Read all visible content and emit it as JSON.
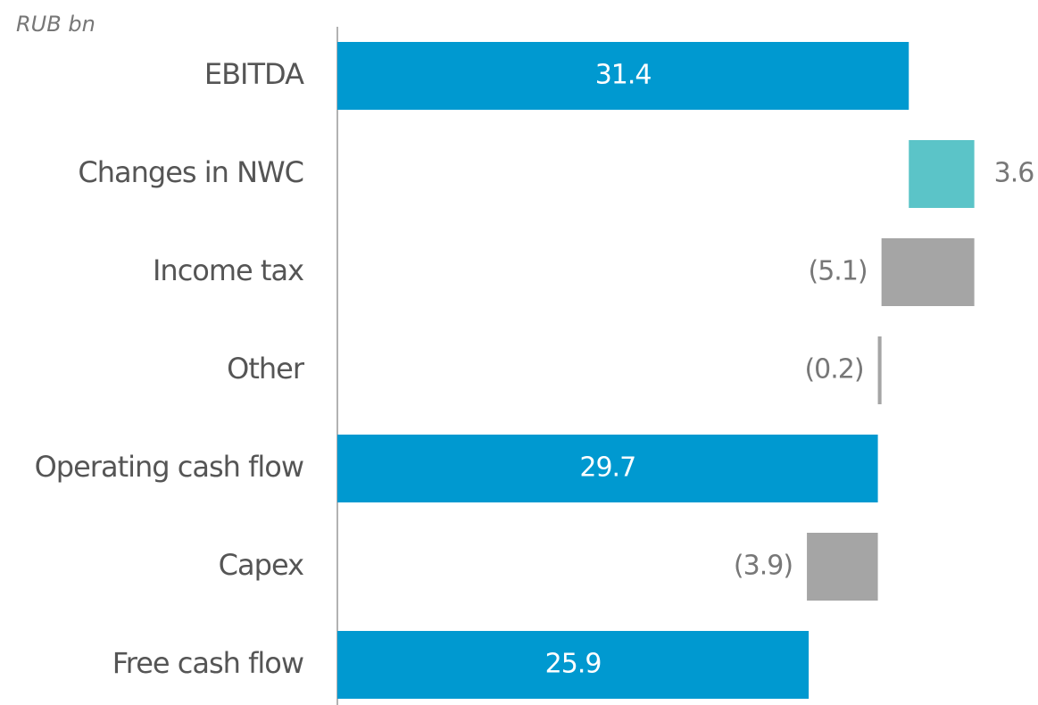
{
  "chart_data": {
    "type": "waterfall",
    "unit_label": "RUB bn",
    "categories": [
      "EBITDA",
      "Changes in NWC",
      "Income tax",
      "Other",
      "Operating cash flow",
      "Capex",
      "Free cash flow"
    ],
    "values": [
      31.4,
      3.6,
      -5.1,
      -0.2,
      29.7,
      -3.9,
      25.9
    ],
    "value_labels": [
      "31.4",
      "3.6",
      "(5.1)",
      "(0.2)",
      "29.7",
      "(3.9)",
      "25.9"
    ],
    "measure": [
      "absolute",
      "relative",
      "relative",
      "relative",
      "absolute",
      "relative",
      "absolute"
    ],
    "colors": [
      "#0099d0",
      "#5bc4c8",
      "#a5a5a5",
      "#a5a5a5",
      "#0099d0",
      "#a5a5a5",
      "#0099d0"
    ],
    "xlim": [
      0,
      38.5
    ]
  }
}
